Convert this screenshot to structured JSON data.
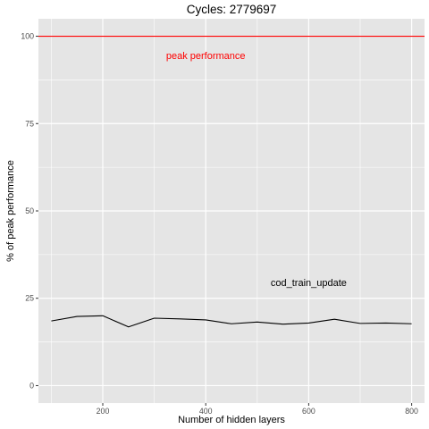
{
  "chart_data": {
    "type": "line",
    "title": "Cycles:  2779697",
    "xlabel": "Number of hidden layers",
    "ylabel": "% of peak performance",
    "xlim": [
      75,
      825
    ],
    "ylim": [
      -5,
      105
    ],
    "x_ticks": [
      200,
      400,
      600,
      800
    ],
    "x_tick_labels": [
      "200",
      "400",
      "600",
      "800"
    ],
    "y_ticks": [
      0,
      25,
      50,
      75,
      100
    ],
    "y_tick_labels": [
      "0",
      "25",
      "50",
      "75",
      "100"
    ],
    "grid": true,
    "legend": "none",
    "series": [
      {
        "color": "#000000",
        "x": [
          100,
          150,
          200,
          250,
          300,
          350,
          400,
          450,
          500,
          550,
          600,
          650,
          700,
          750,
          800
        ],
        "y": [
          18.5,
          19.8,
          20.0,
          16.8,
          19.3,
          19.1,
          18.8,
          17.7,
          18.2,
          17.6,
          17.9,
          19.0,
          17.8,
          17.9,
          17.7
        ]
      }
    ],
    "reference_line": {
      "y": 100,
      "color": "#ff0000",
      "label": "peak performance",
      "label_x": 400,
      "label_y": 94.5
    },
    "annotation": {
      "text": "cod_train_update",
      "x": 600,
      "y": 29.5
    },
    "colors": {
      "panel": "#e5e5e5",
      "grid": "#ffffff",
      "line": "#000000",
      "peak": "#ff0000"
    }
  }
}
